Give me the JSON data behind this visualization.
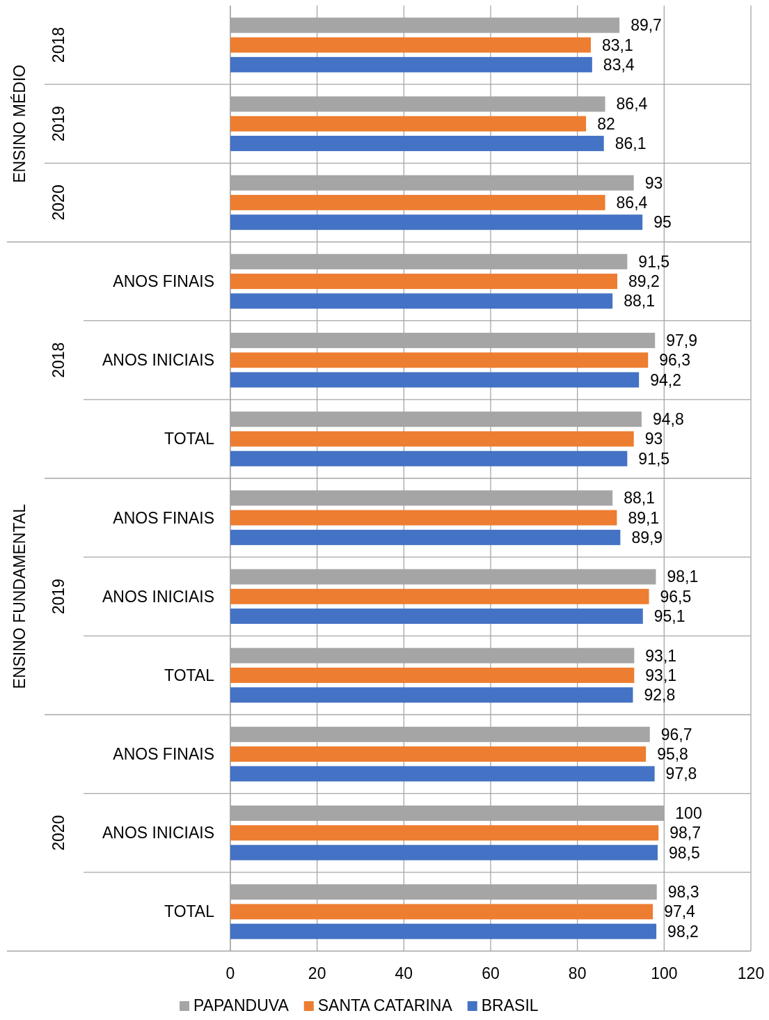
{
  "chart_data": {
    "type": "bar",
    "orientation": "horizontal",
    "categories": [
      null,
      null,
      null,
      "ANOS FINAIS",
      "ANOS INICIAIS",
      "TOTAL",
      "ANOS FINAIS",
      "ANOS INICIAIS",
      "TOTAL",
      "ANOS FINAIS",
      "ANOS INICIAIS",
      "TOTAL"
    ],
    "series": [
      {
        "name": "PAPANDUVA",
        "color": "#a5a5a5",
        "values": [
          89.7,
          86.4,
          93,
          91.5,
          97.9,
          94.8,
          88.1,
          98.1,
          93.1,
          96.7,
          100,
          98.3
        ],
        "value_labels": [
          "89,7",
          "86,4",
          "93",
          "91,5",
          "97,9",
          "94,8",
          "88,1",
          "98,1",
          "93,1",
          "96,7",
          "100",
          "98,3"
        ]
      },
      {
        "name": "SANTA CATARINA",
        "color": "#ed7d31",
        "values": [
          83.1,
          82,
          86.4,
          89.2,
          96.3,
          93,
          89.1,
          96.5,
          93.1,
          95.8,
          98.7,
          97.4
        ],
        "value_labels": [
          "83,1",
          "82",
          "86,4",
          "89,2",
          "96,3",
          "93",
          "89,1",
          "96,5",
          "93,1",
          "95,8",
          "98,7",
          "97,4"
        ]
      },
      {
        "name": "BRASIL",
        "color": "#4472c4",
        "values": [
          83.4,
          86.1,
          95,
          88.1,
          94.2,
          91.5,
          89.9,
          95.1,
          92.8,
          97.8,
          98.5,
          98.2
        ],
        "value_labels": [
          "83,4",
          "86,1",
          "95",
          "88,1",
          "94,2",
          "91,5",
          "89,9",
          "95,1",
          "92,8",
          "97,8",
          "98,5",
          "98,2"
        ]
      }
    ],
    "annotations": [
      "ENSINO MÉDIO",
      "ENSINO FUNDAMENTAL",
      "2018",
      "2019",
      "2020",
      "2018",
      "2019",
      "2020"
    ],
    "xlim": [
      0,
      120
    ],
    "xticks": [
      0,
      20,
      40,
      60,
      80,
      100,
      120
    ],
    "grid": "x",
    "legend": "bottom"
  }
}
